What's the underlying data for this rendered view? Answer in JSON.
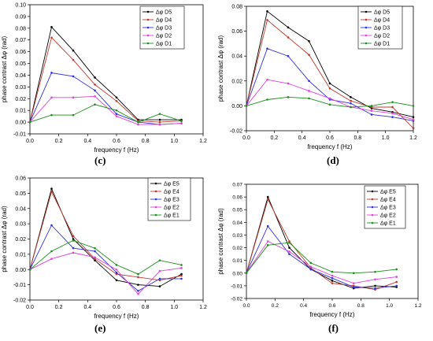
{
  "figure": {
    "panels": [
      {
        "caption": "(c)",
        "chart_data": {
          "type": "line",
          "xlabel": "frequency f (Hz)",
          "ylabel": "phase contrast Δφ (rad)",
          "xlim": [
            0.0,
            1.2
          ],
          "ylim": [
            -0.01,
            0.1
          ],
          "xticks": [
            "0.0",
            "0.2",
            "0.4",
            "0.6",
            "0.8",
            "1.0",
            "1.2"
          ],
          "yticks": [
            "-0.01",
            "0.00",
            "0.01",
            "0.02",
            "0.03",
            "0.04",
            "0.05",
            "0.06",
            "0.07",
            "0.08",
            "0.09",
            "0.10"
          ],
          "legend": "top-right",
          "x": [
            0.0,
            0.15,
            0.3,
            0.45,
            0.6,
            0.75,
            0.9,
            1.05
          ],
          "series": [
            {
              "name": "Δφ D5",
              "color": "#000000",
              "values": [
                0.0,
                0.081,
                0.061,
                0.038,
                0.021,
                0.002,
                0.002,
                0.002
              ]
            },
            {
              "name": "Δφ D4",
              "color": "#c0392b",
              "values": [
                0.0,
                0.072,
                0.053,
                0.032,
                0.018,
                0.001,
                0.0,
                0.001
              ]
            },
            {
              "name": "Δφ D3",
              "color": "#2e2ee6",
              "values": [
                0.0,
                0.042,
                0.039,
                0.027,
                0.007,
                0.0,
                -0.002,
                -0.001
              ]
            },
            {
              "name": "Δφ D2",
              "color": "#e040e0",
              "values": [
                0.0,
                0.021,
                0.021,
                0.022,
                0.005,
                -0.002,
                -0.002,
                -0.001
              ]
            },
            {
              "name": "Δφ D1",
              "color": "#1a8f1a",
              "values": [
                0.0,
                0.006,
                0.006,
                0.015,
                0.01,
                0.0,
                0.007,
                0.001
              ]
            }
          ]
        }
      },
      {
        "caption": "(d)",
        "chart_data": {
          "type": "line",
          "xlabel": "frequency f (Hz)",
          "ylabel": "phase contrast Δφ (rad)",
          "xlim": [
            0.0,
            1.2
          ],
          "ylim": [
            -0.02,
            0.08
          ],
          "xticks": [
            "0.0",
            "0.2",
            "0.4",
            "0.6",
            "0.8",
            "1.0",
            "1.2"
          ],
          "yticks": [
            "-0.02",
            "0.00",
            "0.02",
            "0.04",
            "0.06",
            "0.08"
          ],
          "legend": "top-right",
          "x": [
            0.0,
            0.15,
            0.3,
            0.45,
            0.6,
            0.75,
            0.9,
            1.05,
            1.2
          ],
          "series": [
            {
              "name": "Δφ D5",
              "color": "#000000",
              "values": [
                0.0,
                0.076,
                0.063,
                0.052,
                0.018,
                0.007,
                -0.002,
                -0.005,
                -0.009
              ]
            },
            {
              "name": "Δφ D4",
              "color": "#c0392b",
              "values": [
                0.0,
                0.069,
                0.055,
                0.041,
                0.014,
                0.004,
                -0.001,
                -0.001,
                -0.018
              ]
            },
            {
              "name": "Δφ D3",
              "color": "#2e2ee6",
              "values": [
                0.0,
                0.046,
                0.04,
                0.02,
                0.005,
                0.002,
                -0.007,
                -0.009,
                -0.012
              ]
            },
            {
              "name": "Δφ D2",
              "color": "#e040e0",
              "values": [
                0.0,
                0.021,
                0.018,
                0.012,
                0.006,
                -0.001,
                -0.004,
                -0.006,
                -0.011
              ]
            },
            {
              "name": "Δφ D1",
              "color": "#1a8f1a",
              "values": [
                0.0,
                0.005,
                0.007,
                0.006,
                0.001,
                -0.001,
                0.0,
                0.003,
                0.0
              ]
            }
          ]
        }
      },
      {
        "caption": "(e)",
        "chart_data": {
          "type": "line",
          "xlabel": "frequency f (Hz)",
          "ylabel": "phase contrast Δφ (rad)",
          "xlim": [
            0.0,
            1.2
          ],
          "ylim": [
            -0.02,
            0.06
          ],
          "xticks": [
            "0.0",
            "0.2",
            "0.4",
            "0.6",
            "0.8",
            "1.0",
            "1.2"
          ],
          "yticks": [
            "-0.02",
            "-0.01",
            "0.00",
            "0.01",
            "0.02",
            "0.03",
            "0.04",
            "0.05",
            "0.06"
          ],
          "legend": "top-right",
          "x": [
            0.0,
            0.15,
            0.3,
            0.45,
            0.6,
            0.75,
            0.9,
            1.05
          ],
          "series": [
            {
              "name": "Δφ E5",
              "color": "#000000",
              "values": [
                0.0,
                0.053,
                0.02,
                0.006,
                -0.007,
                -0.01,
                -0.011,
                -0.003
              ]
            },
            {
              "name": "Δφ E4",
              "color": "#c0392b",
              "values": [
                0.0,
                0.051,
                0.022,
                0.007,
                -0.003,
                -0.005,
                -0.007,
                -0.004
              ]
            },
            {
              "name": "Δφ E3",
              "color": "#2e2ee6",
              "values": [
                0.0,
                0.029,
                0.014,
                0.012,
                -0.002,
                -0.014,
                -0.006,
                -0.006
              ]
            },
            {
              "name": "Δφ E2",
              "color": "#e040e0",
              "values": [
                0.0,
                0.007,
                0.011,
                0.008,
                0.0,
                -0.016,
                -0.001,
                0.001
              ]
            },
            {
              "name": "Δφ E1",
              "color": "#1a8f1a",
              "values": [
                0.0,
                0.012,
                0.019,
                0.014,
                0.003,
                -0.003,
                0.006,
                0.003
              ]
            }
          ]
        }
      },
      {
        "caption": "(f)",
        "chart_data": {
          "type": "line",
          "xlabel": "frequency f (Hz)",
          "ylabel": "phase contrast Δφ (rad)",
          "xlim": [
            0.0,
            1.2
          ],
          "ylim": [
            -0.02,
            0.07
          ],
          "xticks": [
            "0.0",
            "0.2",
            "0.4",
            "0.6",
            "0.8",
            "1.0",
            "1.2"
          ],
          "yticks": [
            "-0.02",
            "-0.01",
            "0.00",
            "0.01",
            "0.02",
            "0.03",
            "0.04",
            "0.05",
            "0.06",
            "0.07"
          ],
          "legend": "top-right",
          "x": [
            0.0,
            0.15,
            0.3,
            0.45,
            0.6,
            0.75,
            0.9,
            1.05
          ],
          "series": [
            {
              "name": "Δφ E5",
              "color": "#000000",
              "values": [
                0.0,
                0.06,
                0.02,
                0.003,
                -0.006,
                -0.012,
                -0.01,
                -0.011
              ]
            },
            {
              "name": "Δφ E4",
              "color": "#c0392b",
              "values": [
                0.0,
                0.058,
                0.025,
                0.004,
                -0.008,
                -0.01,
                -0.013,
                -0.007
              ]
            },
            {
              "name": "Δφ E3",
              "color": "#2e2ee6",
              "values": [
                0.0,
                0.037,
                0.015,
                0.003,
                -0.004,
                -0.011,
                -0.012,
                -0.01
              ]
            },
            {
              "name": "Δφ E2",
              "color": "#e040e0",
              "values": [
                0.0,
                0.025,
                0.017,
                0.005,
                -0.002,
                -0.008,
                -0.005,
                -0.003
              ]
            },
            {
              "name": "Δφ E1",
              "color": "#1a8f1a",
              "values": [
                0.0,
                0.022,
                0.024,
                0.008,
                0.001,
                0.0,
                0.001,
                0.003
              ]
            }
          ]
        }
      }
    ]
  }
}
